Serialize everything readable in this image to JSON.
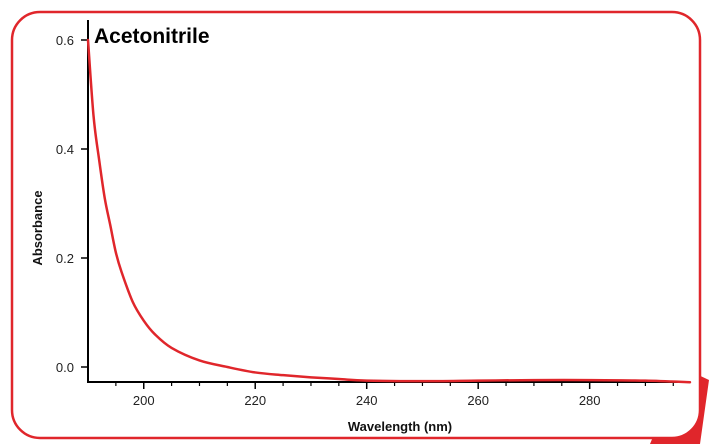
{
  "chart_data": {
    "type": "line",
    "title": "Acetonitrile",
    "xlabel": "Wavelength (nm)",
    "ylabel": "Absorbance",
    "xlim": [
      190,
      298
    ],
    "ylim": [
      -0.03,
      0.65
    ],
    "x_ticks": [
      200,
      220,
      240,
      260,
      280
    ],
    "x_tick_labels": [
      "200",
      "220",
      "240",
      "260",
      "280"
    ],
    "y_ticks": [
      0.0,
      0.2,
      0.4,
      0.6
    ],
    "y_tick_labels": [
      "0.0",
      "0.2",
      "0.4",
      "0.6"
    ],
    "grid": false,
    "series": [
      {
        "color": "#e0262b",
        "x": [
          190,
          191,
          192,
          193,
          194,
          195,
          196,
          198,
          200,
          202,
          205,
          210,
          215,
          220,
          225,
          230,
          235,
          240,
          250,
          260,
          270,
          280,
          290,
          298
        ],
        "y": [
          0.6,
          0.46,
          0.38,
          0.31,
          0.26,
          0.21,
          0.175,
          0.12,
          0.085,
          0.06,
          0.035,
          0.012,
          0.0,
          -0.01,
          -0.015,
          -0.019,
          -0.022,
          -0.025,
          -0.026,
          -0.025,
          -0.024,
          -0.024,
          -0.025,
          -0.028
        ]
      }
    ]
  },
  "colors": {
    "frame_border": "#e0262b",
    "frame_shadow": "#e0262b",
    "axis": "#000000",
    "line": "#e0262b"
  }
}
